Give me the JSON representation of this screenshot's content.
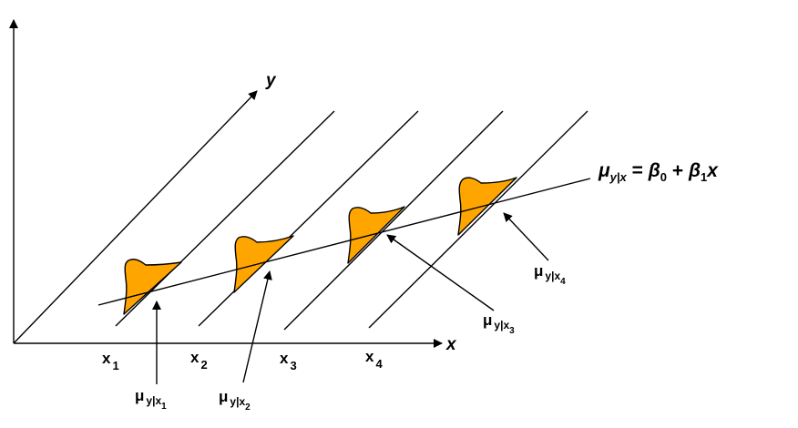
{
  "axes": {
    "x_label": "x",
    "y_label": "y"
  },
  "x_ticks": [
    {
      "base": "x",
      "sub": "1"
    },
    {
      "base": "x",
      "sub": "2"
    },
    {
      "base": "x",
      "sub": "3"
    },
    {
      "base": "x",
      "sub": "4"
    }
  ],
  "equation": {
    "mu": "μ",
    "mu_sub": "y|x",
    "rhs_equals": " = ",
    "beta": "β",
    "beta0_sub": "0",
    "plus": " + ",
    "beta1_sub": "1",
    "x": "x"
  },
  "mean_labels": [
    {
      "mu": "μ",
      "sub": "y|x",
      "subsub": "1"
    },
    {
      "mu": "μ",
      "sub": "y|x",
      "subsub": "2"
    },
    {
      "mu": "μ",
      "sub": "y|x",
      "subsub": "3"
    },
    {
      "mu": "μ",
      "sub": "y|x",
      "subsub": "4"
    }
  ],
  "colors": {
    "line": "#000000",
    "distribution_fill": "#ffa500",
    "background": "#ffffff"
  }
}
